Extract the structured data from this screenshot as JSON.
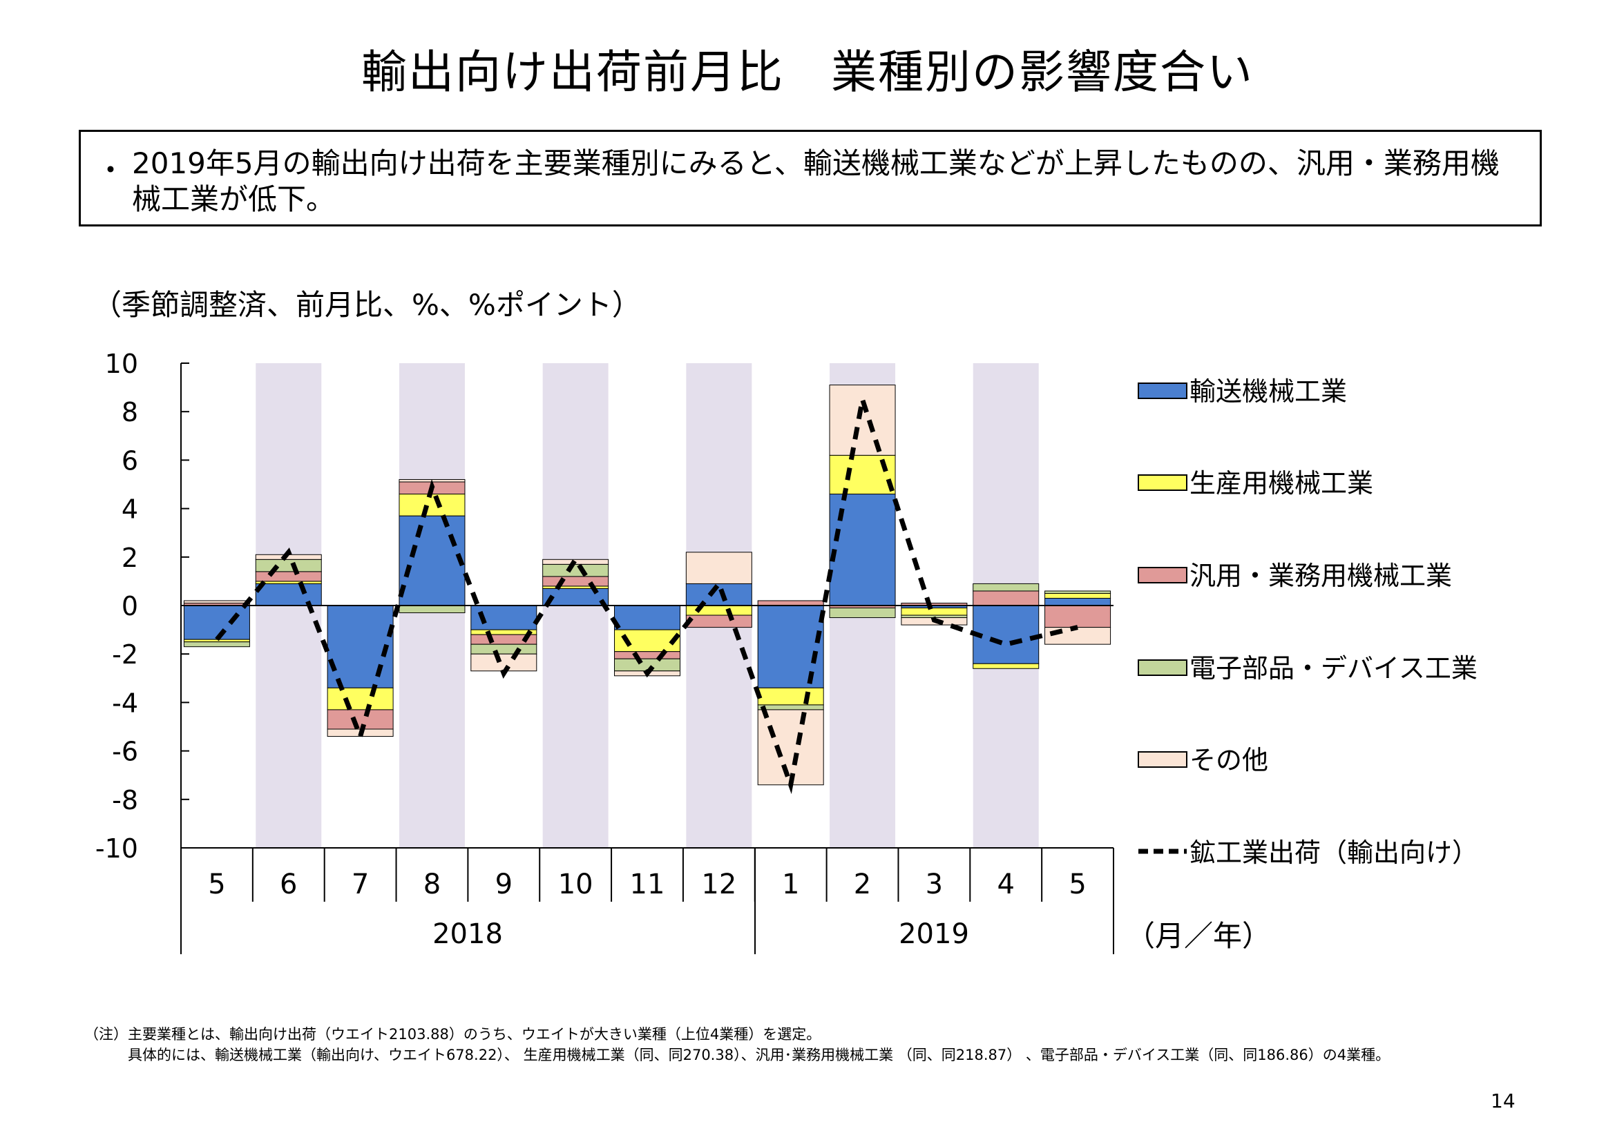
{
  "title": "輸出向け出荷前月比　業種別の影響度合い",
  "summary": {
    "bullet": "・",
    "text": "2019年5月の輸出向け出荷を主要業種別にみると、輸送機械工業などが上昇したものの、汎用・業務用機械工業が低下。"
  },
  "unit_label": "（季節調整済、前月比、%、%ポイント）",
  "axis_unit_label": "（月／年）",
  "years": [
    "2018",
    "2019"
  ],
  "colors": {
    "transport": "#4a7fd0",
    "production": "#ffff60",
    "general": "#e09a98",
    "electronic": "#c3d69b",
    "other": "#fbe5d6",
    "shade": "#e4dfec",
    "line": "#000000"
  },
  "chart_data": {
    "type": "bar",
    "stacked": true,
    "categories": [
      "5",
      "6",
      "7",
      "8",
      "9",
      "10",
      "11",
      "12",
      "1",
      "2",
      "3",
      "4",
      "5"
    ],
    "ylim": [
      -10,
      10
    ],
    "yticks": [
      10,
      8,
      6,
      4,
      2,
      0,
      -2,
      -4,
      -6,
      -8,
      -10
    ],
    "shaded_categories": [
      "6",
      "8",
      "10",
      "12",
      "2",
      "4"
    ],
    "series": [
      {
        "key": "transport",
        "name": "輸送機械工業",
        "values": [
          -1.4,
          0.9,
          -3.4,
          3.7,
          -1.0,
          0.7,
          -1.0,
          0.9,
          -3.4,
          4.6,
          -0.1,
          -2.4,
          0.3
        ]
      },
      {
        "key": "production",
        "name": "生産用機械工業",
        "values": [
          -0.1,
          0.1,
          -0.9,
          0.9,
          -0.2,
          0.1,
          -0.9,
          -0.4,
          -0.7,
          1.6,
          -0.3,
          -0.2,
          0.2
        ]
      },
      {
        "key": "general",
        "name": "汎用・業務用機械工業",
        "values": [
          0.1,
          0.4,
          -0.8,
          0.5,
          -0.4,
          0.4,
          -0.3,
          -0.5,
          0.2,
          -0.1,
          0.1,
          0.6,
          -0.9
        ]
      },
      {
        "key": "electronic",
        "name": "電子部品・デバイス工業",
        "values": [
          -0.2,
          0.5,
          0.0,
          -0.3,
          -0.4,
          0.5,
          -0.5,
          0.0,
          -0.2,
          -0.4,
          -0.1,
          0.3,
          0.1
        ]
      },
      {
        "key": "other",
        "name": "その他",
        "values": [
          0.1,
          0.2,
          -0.3,
          0.1,
          -0.7,
          0.2,
          -0.2,
          1.3,
          -3.1,
          2.9,
          -0.3,
          0.0,
          -0.7
        ]
      }
    ],
    "line": {
      "name": "鉱工業出荷（輸出向け）",
      "values": [
        -1.4,
        2.2,
        -5.4,
        4.9,
        -2.8,
        1.9,
        -2.8,
        0.9,
        -7.4,
        8.5,
        -0.6,
        -1.6,
        -0.9
      ]
    }
  },
  "notes": [
    "（注）主要業種とは、輸出向け出荷（ウエイト2103.88）のうち、ウエイトが大きい業種（上位4業種）を選定。",
    "　　　具体的には、輸送機械工業（輸出向け、ウエイト678.22）、 生産用機械工業（同、同270.38）、汎用･業務用機械工業 （同、同218.87） 、電子部品・デバイス工業（同、同186.86）の4業種。"
  ],
  "page_number": "14"
}
